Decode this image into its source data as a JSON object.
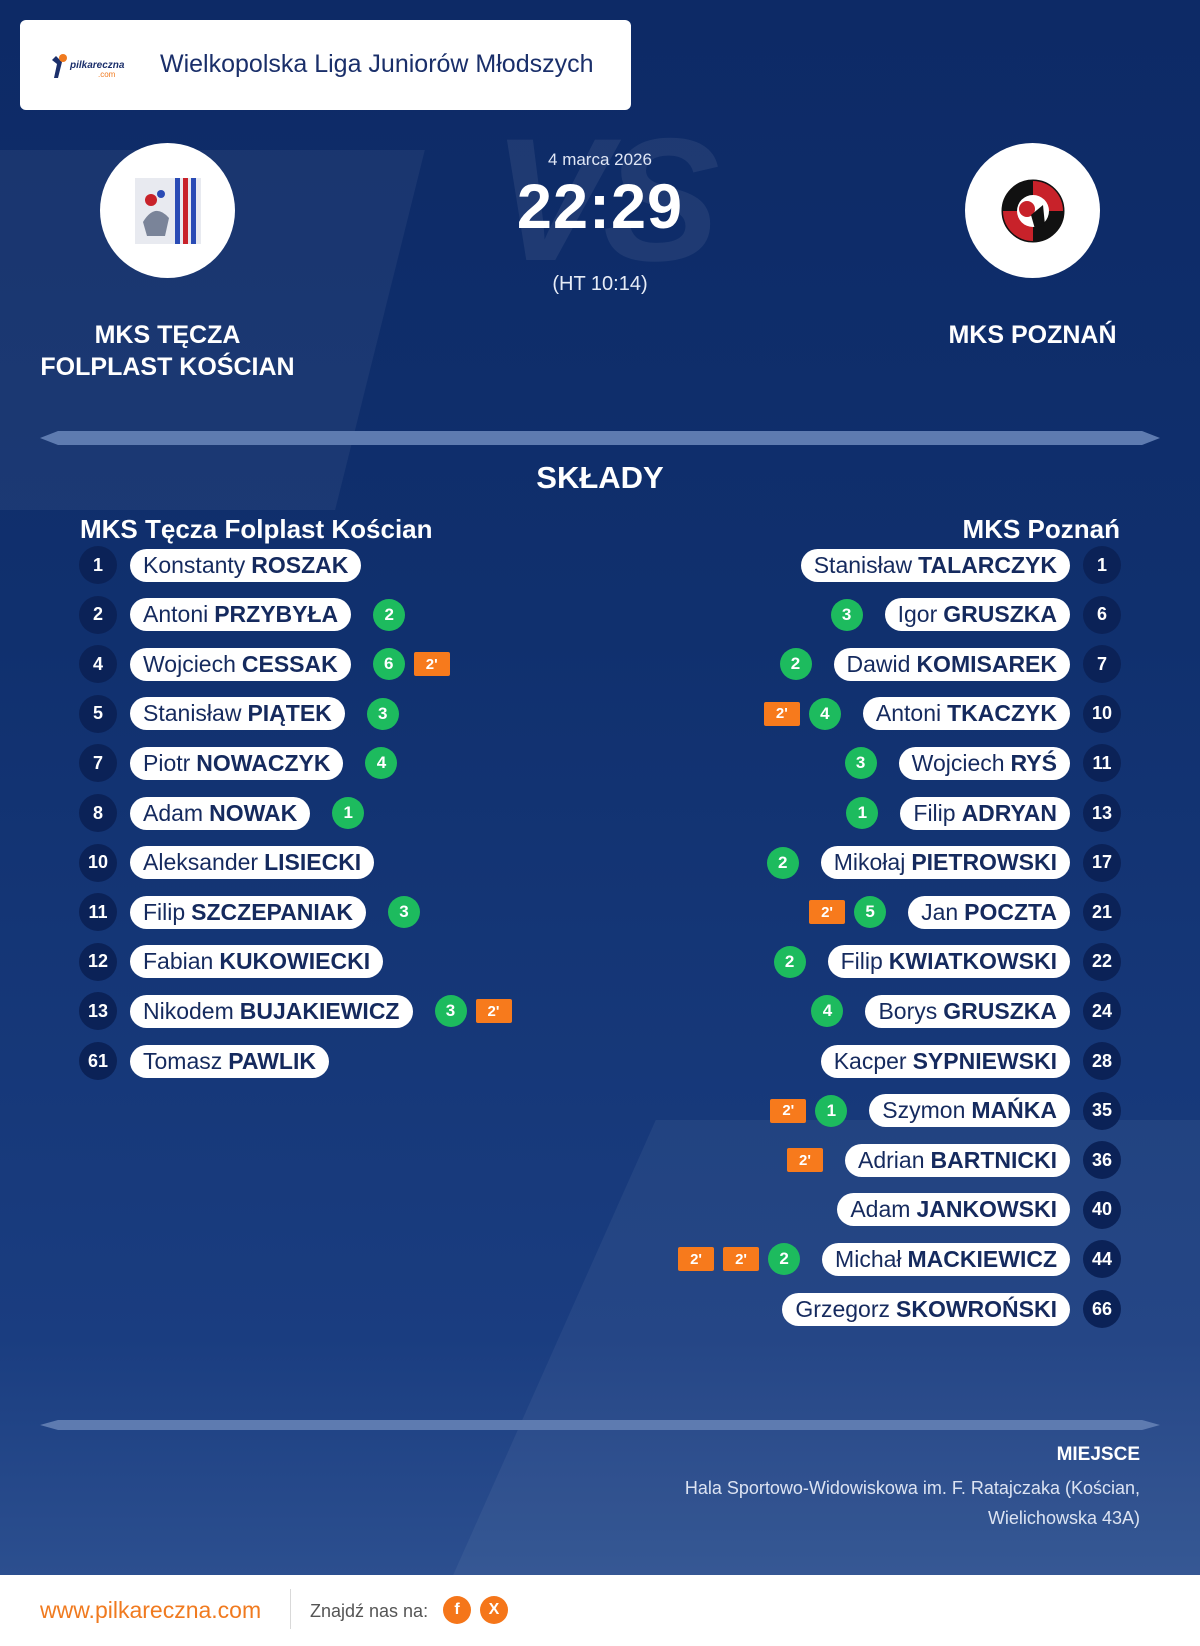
{
  "league": {
    "title": "Wielkopolska Liga Juniorów Młodszych",
    "logo_word": "pilkareczna",
    "logo_domain": ".com"
  },
  "match": {
    "date": "4 marca 2026",
    "score": "22:29",
    "halftime": "(HT 10:14)",
    "vs_watermark": "VS"
  },
  "home": {
    "name_line1": "MKS TĘCZA",
    "name_line2": "FOLPLAST KOŚCIAN",
    "squad_name": "MKS Tęcza Folplast Kościan",
    "players": [
      {
        "num": "1",
        "first": "Konstanty",
        "last": "ROSZAK",
        "goals": null,
        "susp": 0
      },
      {
        "num": "2",
        "first": "Antoni",
        "last": "PRZYBYŁA",
        "goals": "2",
        "susp": 0
      },
      {
        "num": "4",
        "first": "Wojciech",
        "last": "CESSAK",
        "goals": "6",
        "susp": 1
      },
      {
        "num": "5",
        "first": "Stanisław",
        "last": "PIĄTEK",
        "goals": "3",
        "susp": 0
      },
      {
        "num": "7",
        "first": "Piotr",
        "last": "NOWACZYK",
        "goals": "4",
        "susp": 0
      },
      {
        "num": "8",
        "first": "Adam",
        "last": "NOWAK",
        "goals": "1",
        "susp": 0
      },
      {
        "num": "10",
        "first": "Aleksander",
        "last": "LISIECKI",
        "goals": null,
        "susp": 0
      },
      {
        "num": "11",
        "first": "Filip",
        "last": "SZCZEPANIAK",
        "goals": "3",
        "susp": 0
      },
      {
        "num": "12",
        "first": "Fabian",
        "last": "KUKOWIECKI",
        "goals": null,
        "susp": 0
      },
      {
        "num": "13",
        "first": "Nikodem",
        "last": "BUJAKIEWICZ",
        "goals": "3",
        "susp": 1
      },
      {
        "num": "61",
        "first": "Tomasz",
        "last": "PAWLIK",
        "goals": null,
        "susp": 0
      }
    ]
  },
  "away": {
    "name_line1": "MKS POZNAŃ",
    "squad_name": "MKS Poznań",
    "players": [
      {
        "num": "1",
        "first": "Stanisław",
        "last": "TALARCZYK",
        "goals": null,
        "susp": 0
      },
      {
        "num": "6",
        "first": "Igor",
        "last": "GRUSZKA",
        "goals": "3",
        "susp": 0
      },
      {
        "num": "7",
        "first": "Dawid",
        "last": "KOMISAREK",
        "goals": "2",
        "susp": 0
      },
      {
        "num": "10",
        "first": "Antoni",
        "last": "TKACZYK",
        "goals": "4",
        "susp": 1
      },
      {
        "num": "11",
        "first": "Wojciech",
        "last": "RYŚ",
        "goals": "3",
        "susp": 0
      },
      {
        "num": "13",
        "first": "Filip",
        "last": "ADRYAN",
        "goals": "1",
        "susp": 0
      },
      {
        "num": "17",
        "first": "Mikołaj",
        "last": "PIETROWSKI",
        "goals": "2",
        "susp": 0
      },
      {
        "num": "21",
        "first": "Jan",
        "last": "POCZTA",
        "goals": "5",
        "susp": 1
      },
      {
        "num": "22",
        "first": "Filip",
        "last": "KWIATKOWSKI",
        "goals": "2",
        "susp": 0
      },
      {
        "num": "24",
        "first": "Borys",
        "last": "GRUSZKA",
        "goals": "4",
        "susp": 0
      },
      {
        "num": "28",
        "first": "Kacper",
        "last": "SYPNIEWSKI",
        "goals": null,
        "susp": 0
      },
      {
        "num": "35",
        "first": "Szymon",
        "last": "MAŃKA",
        "goals": "1",
        "susp": 1
      },
      {
        "num": "36",
        "first": "Adrian",
        "last": "BARTNICKI",
        "goals": null,
        "susp": 1
      },
      {
        "num": "40",
        "first": "Adam",
        "last": "JANKOWSKI",
        "goals": null,
        "susp": 0
      },
      {
        "num": "44",
        "first": "Michał",
        "last": "MACKIEWICZ",
        "goals": "2",
        "susp": 2
      },
      {
        "num": "66",
        "first": "Grzegorz",
        "last": "SKOWROŃSKI",
        "goals": null,
        "susp": 0
      }
    ]
  },
  "susp_label": "2'",
  "section_title": "SKŁADY",
  "venue": {
    "label": "MIEJSCE",
    "line1": "Hala Sportowo-Widowiskowa im. F. Ratajczaka (Kościan,",
    "line2": "Wielichowska 43A)"
  },
  "footer": {
    "url": "www.pilkareczna.com",
    "find_us": "Znajdź nas na:",
    "facebook_glyph": "f",
    "x_glyph": "X"
  },
  "colors": {
    "background": "#10306e",
    "goals": "#1dbb5e",
    "suspension": "#f77a1c",
    "accent": "#f07a1f"
  }
}
